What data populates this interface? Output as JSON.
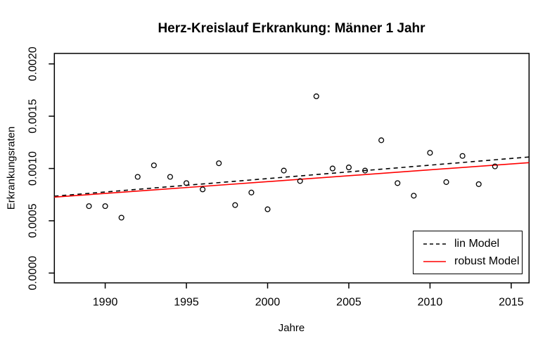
{
  "chart_data": {
    "type": "scatter",
    "title": "Herz-Kreislauf Erkrankung: Männer 1 Jahr",
    "xlabel": "Jahre",
    "ylabel": "Erkrankungsraten",
    "xlim": [
      1986.87,
      2016.1
    ],
    "ylim": [
      -9.4e-05,
      0.0021
    ],
    "x_ticks": [
      1990,
      1995,
      2000,
      2005,
      2010,
      2015
    ],
    "y_ticks": [
      0,
      0.0005,
      0.001,
      0.0015,
      0.002
    ],
    "y_tick_labels": [
      "0.0000",
      "0.0005",
      "0.0010",
      "0.0015",
      "0.0020"
    ],
    "grid": false,
    "marker": "open-circle",
    "axis_color": "#000000",
    "points": {
      "x": [
        1989,
        1990,
        1991,
        1992,
        1993,
        1994,
        1995,
        1996,
        1997,
        1998,
        1999,
        2000,
        2001,
        2002,
        2003,
        2004,
        2005,
        2006,
        2007,
        2008,
        2009,
        2010,
        2011,
        2012,
        2013,
        2014
      ],
      "y": [
        0.00064,
        0.00064,
        0.00053,
        0.00092,
        0.00103,
        0.00092,
        0.00086,
        0.0008,
        0.00105,
        0.00065,
        0.00077,
        0.00061,
        0.00098,
        0.00088,
        0.00169,
        0.001,
        0.00101,
        0.00098,
        0.00127,
        0.00086,
        0.00074,
        0.00115,
        0.00087,
        0.00112,
        0.00085,
        0.00102
      ]
    },
    "lines": [
      {
        "name": "lin Model",
        "style": "dashed",
        "color": "#000000",
        "y_at_xmin": 0.000735,
        "y_at_xmax": 0.00111
      },
      {
        "name": "robust Model",
        "style": "solid",
        "color": "#FF0000",
        "y_at_xmin": 0.000726,
        "y_at_xmax": 0.001056
      }
    ],
    "legend": {
      "position": "bottom-right"
    }
  }
}
